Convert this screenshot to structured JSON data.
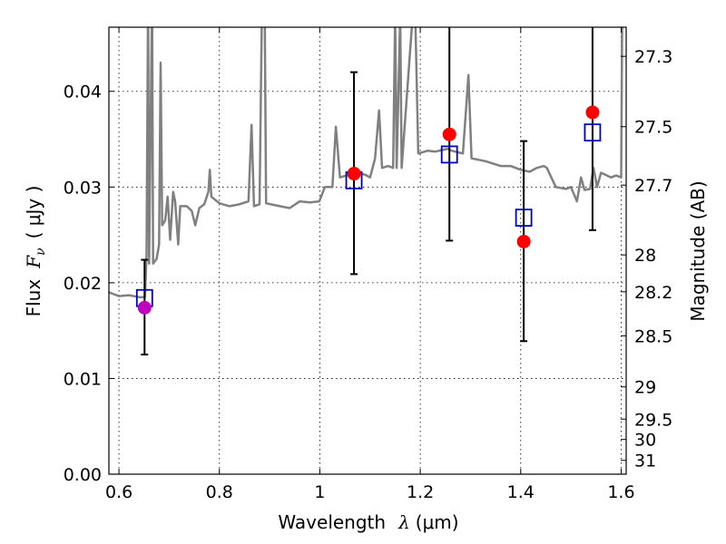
{
  "chart_data": {
    "type": "scatter",
    "title": "",
    "xlabel": "Wavelength",
    "xlabel_symbol": "λ",
    "xlabel_unit": "(μm)",
    "ylabel": "Flux",
    "ylabel_symbol": "F",
    "ylabel_subscript": "ν",
    "ylabel_unit": "( μJy )",
    "y2label": "Magnitude (AB)",
    "xlim": [
      0.58,
      1.61
    ],
    "ylim": [
      0.0,
      0.0467
    ],
    "grid": true,
    "x_ticks": [
      0.6,
      0.8,
      1.0,
      1.2,
      1.4,
      1.6
    ],
    "x_tick_labels": [
      "0.6",
      "0.8",
      "1",
      "1.2",
      "1.4",
      "1.6"
    ],
    "y_ticks": [
      0.0,
      0.01,
      0.02,
      0.03,
      0.04
    ],
    "y_tick_labels": [
      "0.00",
      "0.01",
      "0.02",
      "0.03",
      "0.04"
    ],
    "mag_ticks": [
      27.3,
      27.5,
      27.7,
      28,
      28.2,
      28.5,
      29,
      29.5,
      30,
      31
    ],
    "mag_tick_labels": [
      "27.3",
      "27.5",
      "27.7",
      "28",
      "28.2",
      "28.5",
      "29",
      "29.5",
      "30",
      "31"
    ],
    "colors": {
      "spectrum": "#808080",
      "observed": "#ff0000",
      "observed_first": "#bf00bf",
      "model": "#0000bf",
      "errorbar": "#000000",
      "grid": "#000000"
    },
    "observed": [
      {
        "x": 0.651,
        "y": 0.0174,
        "err_lo": 0.0125,
        "err_hi": 0.0224
      },
      {
        "x": 1.068,
        "y": 0.0314,
        "err_lo": 0.0209,
        "err_hi": 0.042
      },
      {
        "x": 1.258,
        "y": 0.0355,
        "err_lo": 0.0244,
        "err_hi": 0.0467
      },
      {
        "x": 1.406,
        "y": 0.0243,
        "err_lo": 0.0139,
        "err_hi": 0.0348
      },
      {
        "x": 1.543,
        "y": 0.0378,
        "err_lo": 0.0255,
        "err_hi": 0.0467
      }
    ],
    "model_points": [
      {
        "x": 0.651,
        "y": 0.0184
      },
      {
        "x": 1.068,
        "y": 0.0307
      },
      {
        "x": 1.258,
        "y": 0.0334
      },
      {
        "x": 1.406,
        "y": 0.0268
      },
      {
        "x": 1.543,
        "y": 0.0357
      }
    ],
    "spectrum": [
      [
        0.58,
        0.019
      ],
      [
        0.6,
        0.0186
      ],
      [
        0.62,
        0.0187
      ],
      [
        0.64,
        0.0185
      ],
      [
        0.652,
        0.0185
      ],
      [
        0.655,
        0.023
      ],
      [
        0.658,
        0.05
      ],
      [
        0.66,
        0.022
      ],
      [
        0.666,
        0.05
      ],
      [
        0.668,
        0.022
      ],
      [
        0.675,
        0.0225
      ],
      [
        0.68,
        0.024
      ],
      [
        0.683,
        0.043
      ],
      [
        0.686,
        0.026
      ],
      [
        0.692,
        0.0265
      ],
      [
        0.697,
        0.029
      ],
      [
        0.702,
        0.0245
      ],
      [
        0.708,
        0.0295
      ],
      [
        0.712,
        0.0285
      ],
      [
        0.718,
        0.024
      ],
      [
        0.722,
        0.028
      ],
      [
        0.735,
        0.028
      ],
      [
        0.745,
        0.0275
      ],
      [
        0.752,
        0.026
      ],
      [
        0.76,
        0.0278
      ],
      [
        0.77,
        0.0282
      ],
      [
        0.778,
        0.0295
      ],
      [
        0.781,
        0.0318
      ],
      [
        0.784,
        0.029
      ],
      [
        0.8,
        0.0283
      ],
      [
        0.82,
        0.028
      ],
      [
        0.84,
        0.0282
      ],
      [
        0.858,
        0.0285
      ],
      [
        0.864,
        0.0365
      ],
      [
        0.869,
        0.028
      ],
      [
        0.88,
        0.0282
      ],
      [
        0.885,
        0.05
      ],
      [
        0.89,
        0.05
      ],
      [
        0.893,
        0.0283
      ],
      [
        0.92,
        0.028
      ],
      [
        0.94,
        0.0278
      ],
      [
        0.96,
        0.0285
      ],
      [
        0.98,
        0.0284
      ],
      [
        0.999,
        0.0285
      ],
      [
        1.01,
        0.03
      ],
      [
        1.025,
        0.03
      ],
      [
        1.032,
        0.0363
      ],
      [
        1.04,
        0.031
      ],
      [
        1.07,
        0.0315
      ],
      [
        1.09,
        0.0313
      ],
      [
        1.1,
        0.031
      ],
      [
        1.11,
        0.033
      ],
      [
        1.118,
        0.038
      ],
      [
        1.124,
        0.032
      ],
      [
        1.136,
        0.0322
      ],
      [
        1.146,
        0.032
      ],
      [
        1.15,
        0.048
      ],
      [
        1.153,
        0.032
      ],
      [
        1.16,
        0.048
      ],
      [
        1.163,
        0.032
      ],
      [
        1.185,
        0.048
      ],
      [
        1.19,
        0.048
      ],
      [
        1.196,
        0.0335
      ],
      [
        1.215,
        0.0338
      ],
      [
        1.23,
        0.0337
      ],
      [
        1.255,
        0.034
      ],
      [
        1.262,
        0.0338
      ],
      [
        1.285,
        0.0335
      ],
      [
        1.296,
        0.0417
      ],
      [
        1.302,
        0.033
      ],
      [
        1.33,
        0.0327
      ],
      [
        1.36,
        0.0322
      ],
      [
        1.38,
        0.0322
      ],
      [
        1.4,
        0.0318
      ],
      [
        1.418,
        0.0316
      ],
      [
        1.432,
        0.032
      ],
      [
        1.446,
        0.0322
      ],
      [
        1.452,
        0.032
      ],
      [
        1.47,
        0.03
      ],
      [
        1.49,
        0.0298
      ],
      [
        1.5,
        0.03
      ],
      [
        1.512,
        0.0285
      ],
      [
        1.52,
        0.031
      ],
      [
        1.527,
        0.0297
      ],
      [
        1.538,
        0.0298
      ],
      [
        1.545,
        0.032
      ],
      [
        1.552,
        0.03
      ],
      [
        1.56,
        0.0315
      ],
      [
        1.58,
        0.031
      ],
      [
        1.59,
        0.0312
      ],
      [
        1.6,
        0.031
      ],
      [
        1.602,
        0.048
      ],
      [
        1.61,
        0.048
      ]
    ]
  }
}
